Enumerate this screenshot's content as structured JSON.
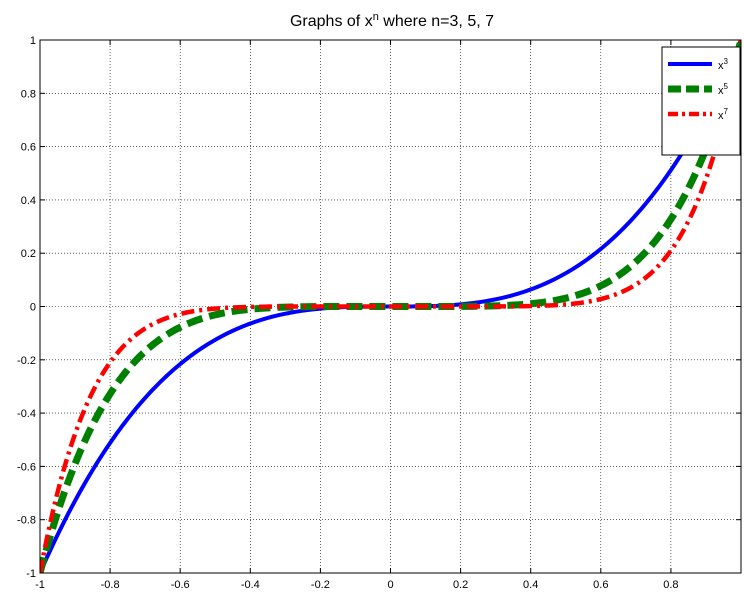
{
  "chart_data": {
    "type": "line",
    "title": "Graphs of x",
    "title_superscript": "n",
    "title_suffix": " where n=3, 5, 7",
    "xlim": [
      -1,
      1
    ],
    "ylim": [
      -1,
      1
    ],
    "xticks": [
      -1,
      -0.8,
      -0.6,
      -0.4,
      -0.2,
      0,
      0.2,
      0.4,
      0.6,
      0.8
    ],
    "xtick_labels": [
      "-1",
      "-0.8",
      "-0.6",
      "-0.4",
      "-0.2",
      "0",
      "0.2",
      "0.4",
      "0.6",
      "0.8"
    ],
    "yticks": [
      -1,
      -0.8,
      -0.6,
      -0.4,
      -0.2,
      0,
      0.2,
      0.4,
      0.6,
      0.8,
      1
    ],
    "ytick_labels": [
      "-1",
      "-0.8",
      "-0.6",
      "-0.4",
      "-0.2",
      "0",
      "0.2",
      "0.4",
      "0.6",
      "0.8",
      "1"
    ],
    "grid": true,
    "legend_placement": "top-right",
    "series": [
      {
        "legend_base": "x",
        "legend_sup": "3",
        "exponent": 3,
        "color": "#0000ff",
        "style": "solid"
      },
      {
        "legend_base": "x",
        "legend_sup": "5",
        "exponent": 5,
        "color": "#008000",
        "style": "dashed"
      },
      {
        "legend_base": "x",
        "legend_sup": "7",
        "exponent": 7,
        "color": "#ff0000",
        "style": "dashdot"
      }
    ]
  }
}
